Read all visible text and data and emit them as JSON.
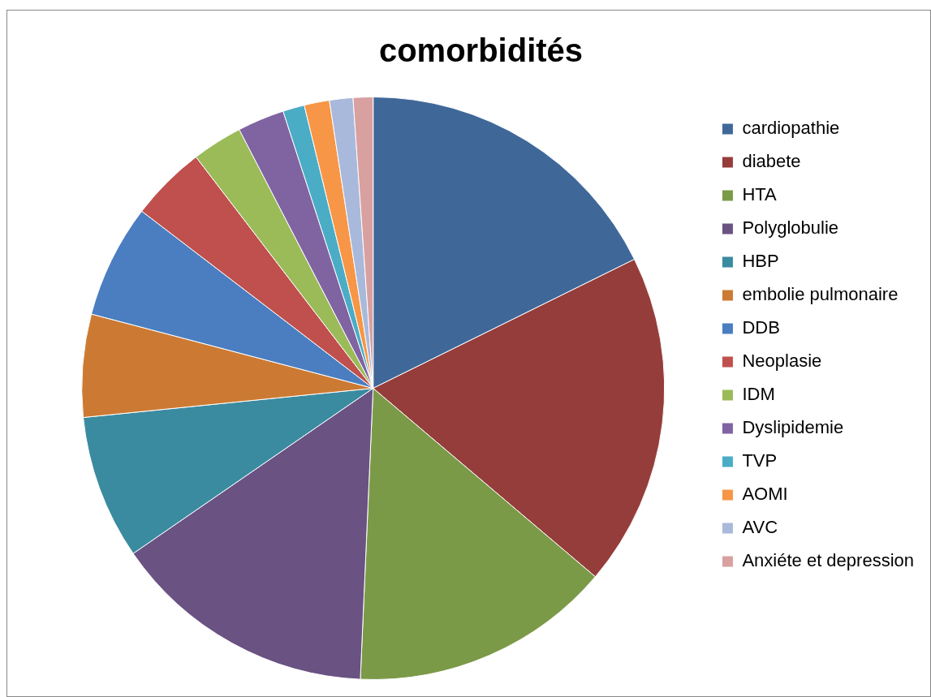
{
  "chart_data": {
    "type": "pie",
    "title": "comorbidités",
    "categories": [
      "cardiopathie",
      "diabete",
      "HTA",
      "Polyglobulie",
      "HBP",
      "embolie pulmonaire",
      "DDB",
      "Neoplasie",
      "IDM",
      "Dyslipidemie",
      "TVP",
      "AOMI",
      "AVC",
      "Anxiéte et depression"
    ],
    "values": [
      17.7,
      18.5,
      14.5,
      14.7,
      8.0,
      5.7,
      6.3,
      4.2,
      2.8,
      2.6,
      1.2,
      1.4,
      1.3,
      1.1
    ],
    "colors": [
      "#3f6899",
      "#953d3b",
      "#7b9a48",
      "#6a5283",
      "#3a8ba0",
      "#cc7a33",
      "#4a7ec0",
      "#c0504d",
      "#9bbb59",
      "#8064a2",
      "#4bacc6",
      "#f79646",
      "#a9b9db",
      "#d9a0a0"
    ],
    "legend": "right"
  }
}
